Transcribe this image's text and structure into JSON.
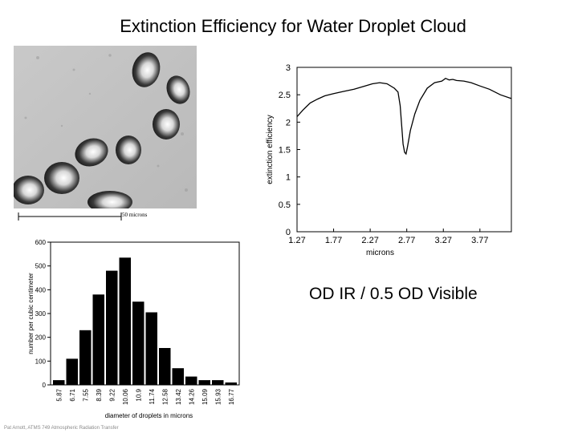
{
  "slide": {
    "title": "Extinction Efficiency for Water Droplet Cloud",
    "od_label": "OD IR / 0.5 OD Visible",
    "footer": "Pat Arnott, ATMS 749 Atmospheric Radiation Transfer"
  },
  "photo": {
    "scale_label": "50 microns"
  },
  "chart_data": [
    {
      "type": "line",
      "title": "",
      "xlabel": "microns",
      "ylabel": "extinction efficiency",
      "xlim": [
        1.27,
        4.2
      ],
      "ylim": [
        0,
        3
      ],
      "xticks": [
        "1.27",
        "1.77",
        "2.27",
        "2.77",
        "3.27",
        "3.77"
      ],
      "yticks": [
        "0",
        "0.5",
        "1",
        "1.5",
        "2",
        "2.5",
        "3"
      ],
      "grid": false,
      "series": [
        {
          "x": [
            1.27,
            1.35,
            1.45,
            1.55,
            1.65,
            1.77,
            1.9,
            2.05,
            2.2,
            2.3,
            2.4,
            2.5,
            2.6,
            2.65,
            2.68,
            2.7,
            2.72,
            2.74,
            2.76,
            2.78,
            2.82,
            2.88,
            2.95,
            3.05,
            3.15,
            3.25,
            3.3,
            3.35,
            3.4,
            3.45,
            3.55,
            3.65,
            3.77,
            3.9,
            4.05,
            4.2
          ],
          "y": [
            2.1,
            2.22,
            2.35,
            2.42,
            2.48,
            2.52,
            2.56,
            2.6,
            2.66,
            2.7,
            2.72,
            2.7,
            2.62,
            2.55,
            2.3,
            1.95,
            1.6,
            1.45,
            1.42,
            1.55,
            1.85,
            2.15,
            2.4,
            2.62,
            2.72,
            2.75,
            2.8,
            2.77,
            2.78,
            2.76,
            2.75,
            2.72,
            2.66,
            2.6,
            2.5,
            2.43
          ]
        }
      ]
    },
    {
      "type": "bar",
      "title": "",
      "xlabel": "diameter of droplets in microns",
      "ylabel": "number per cubic centimeter",
      "ylim": [
        0,
        600
      ],
      "yticks": [
        "0",
        "100",
        "200",
        "300",
        "400",
        "500",
        "600"
      ],
      "categories": [
        "5.87",
        "6.71",
        "7.55",
        "8.39",
        "9.22",
        "10.06",
        "10.9",
        "11.74",
        "12.58",
        "13.42",
        "14.26",
        "15.09",
        "15.93",
        "16.77"
      ],
      "values": [
        20,
        110,
        230,
        380,
        480,
        535,
        350,
        305,
        155,
        70,
        35,
        20,
        20,
        10
      ],
      "grid": false
    }
  ]
}
